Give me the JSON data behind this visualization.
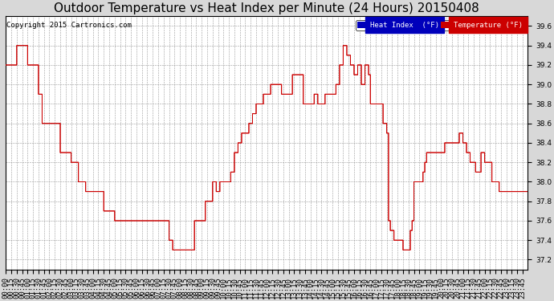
{
  "title": "Outdoor Temperature vs Heat Index per Minute (24 Hours) 20150408",
  "copyright": "Copyright 2015 Cartronics.com",
  "ylim": [
    37.1,
    39.7
  ],
  "yticks": [
    37.2,
    37.4,
    37.6,
    37.8,
    38.0,
    38.2,
    38.4,
    38.6,
    38.8,
    39.0,
    39.2,
    39.4,
    39.6
  ],
  "bg_color": "#d8d8d8",
  "plot_bg_color": "#ffffff",
  "grid_color": "#999999",
  "temp_color": "#cc0000",
  "heat_color": "#cc0000",
  "legend_heat_bg": "#0000bb",
  "legend_temp_bg": "#cc0000",
  "legend_heat_text": "Heat Index  (°F)",
  "legend_temp_text": "Temperature (°F)",
  "title_fontsize": 11,
  "tick_fontsize": 6.5,
  "copyright_fontsize": 6.5,
  "n_minutes": 1440,
  "keypoints_temp": [
    [
      0,
      39.2
    ],
    [
      30,
      39.4
    ],
    [
      60,
      39.2
    ],
    [
      90,
      38.9
    ],
    [
      100,
      38.6
    ],
    [
      120,
      38.6
    ],
    [
      150,
      38.3
    ],
    [
      180,
      38.2
    ],
    [
      200,
      38.0
    ],
    [
      220,
      37.9
    ],
    [
      240,
      37.9
    ],
    [
      270,
      37.7
    ],
    [
      300,
      37.6
    ],
    [
      330,
      37.6
    ],
    [
      360,
      37.6
    ],
    [
      390,
      37.6
    ],
    [
      420,
      37.6
    ],
    [
      450,
      37.4
    ],
    [
      460,
      37.3
    ],
    [
      480,
      37.3
    ],
    [
      500,
      37.3
    ],
    [
      510,
      37.3
    ],
    [
      520,
      37.6
    ],
    [
      530,
      37.6
    ],
    [
      540,
      37.6
    ],
    [
      550,
      37.8
    ],
    [
      560,
      37.8
    ],
    [
      570,
      38.0
    ],
    [
      580,
      37.9
    ],
    [
      590,
      38.0
    ],
    [
      600,
      38.0
    ],
    [
      610,
      38.0
    ],
    [
      620,
      38.1
    ],
    [
      630,
      38.3
    ],
    [
      640,
      38.4
    ],
    [
      650,
      38.5
    ],
    [
      660,
      38.5
    ],
    [
      670,
      38.6
    ],
    [
      680,
      38.7
    ],
    [
      690,
      38.8
    ],
    [
      700,
      38.8
    ],
    [
      710,
      38.9
    ],
    [
      720,
      38.9
    ],
    [
      730,
      39.0
    ],
    [
      740,
      39.0
    ],
    [
      750,
      39.0
    ],
    [
      760,
      38.9
    ],
    [
      770,
      38.9
    ],
    [
      780,
      38.9
    ],
    [
      790,
      39.1
    ],
    [
      800,
      39.1
    ],
    [
      810,
      39.1
    ],
    [
      820,
      38.8
    ],
    [
      830,
      38.8
    ],
    [
      840,
      38.8
    ],
    [
      850,
      38.9
    ],
    [
      860,
      38.8
    ],
    [
      870,
      38.8
    ],
    [
      880,
      38.9
    ],
    [
      890,
      38.9
    ],
    [
      900,
      38.9
    ],
    [
      910,
      39.0
    ],
    [
      920,
      39.2
    ],
    [
      930,
      39.4
    ],
    [
      940,
      39.3
    ],
    [
      950,
      39.2
    ],
    [
      960,
      39.1
    ],
    [
      970,
      39.2
    ],
    [
      980,
      39.0
    ],
    [
      990,
      39.2
    ],
    [
      1000,
      39.1
    ],
    [
      1005,
      38.8
    ],
    [
      1010,
      38.8
    ],
    [
      1020,
      38.8
    ],
    [
      1030,
      38.8
    ],
    [
      1040,
      38.6
    ],
    [
      1050,
      38.5
    ],
    [
      1055,
      37.6
    ],
    [
      1060,
      37.5
    ],
    [
      1070,
      37.4
    ],
    [
      1080,
      37.4
    ],
    [
      1090,
      37.4
    ],
    [
      1095,
      37.3
    ],
    [
      1100,
      37.3
    ],
    [
      1110,
      37.3
    ],
    [
      1115,
      37.5
    ],
    [
      1120,
      37.6
    ],
    [
      1125,
      38.0
    ],
    [
      1130,
      38.0
    ],
    [
      1140,
      38.0
    ],
    [
      1150,
      38.1
    ],
    [
      1155,
      38.2
    ],
    [
      1160,
      38.3
    ],
    [
      1170,
      38.3
    ],
    [
      1180,
      38.3
    ],
    [
      1190,
      38.3
    ],
    [
      1200,
      38.3
    ],
    [
      1210,
      38.4
    ],
    [
      1220,
      38.4
    ],
    [
      1230,
      38.4
    ],
    [
      1240,
      38.4
    ],
    [
      1250,
      38.5
    ],
    [
      1260,
      38.4
    ],
    [
      1270,
      38.3
    ],
    [
      1280,
      38.2
    ],
    [
      1290,
      38.2
    ],
    [
      1295,
      38.1
    ],
    [
      1300,
      38.1
    ],
    [
      1310,
      38.3
    ],
    [
      1320,
      38.2
    ],
    [
      1330,
      38.2
    ],
    [
      1340,
      38.0
    ],
    [
      1350,
      38.0
    ],
    [
      1360,
      37.9
    ],
    [
      1370,
      37.9
    ],
    [
      1380,
      37.9
    ],
    [
      1390,
      37.9
    ],
    [
      1400,
      37.9
    ],
    [
      1410,
      37.9
    ],
    [
      1420,
      37.9
    ],
    [
      1430,
      37.9
    ],
    [
      1439,
      37.9
    ]
  ]
}
